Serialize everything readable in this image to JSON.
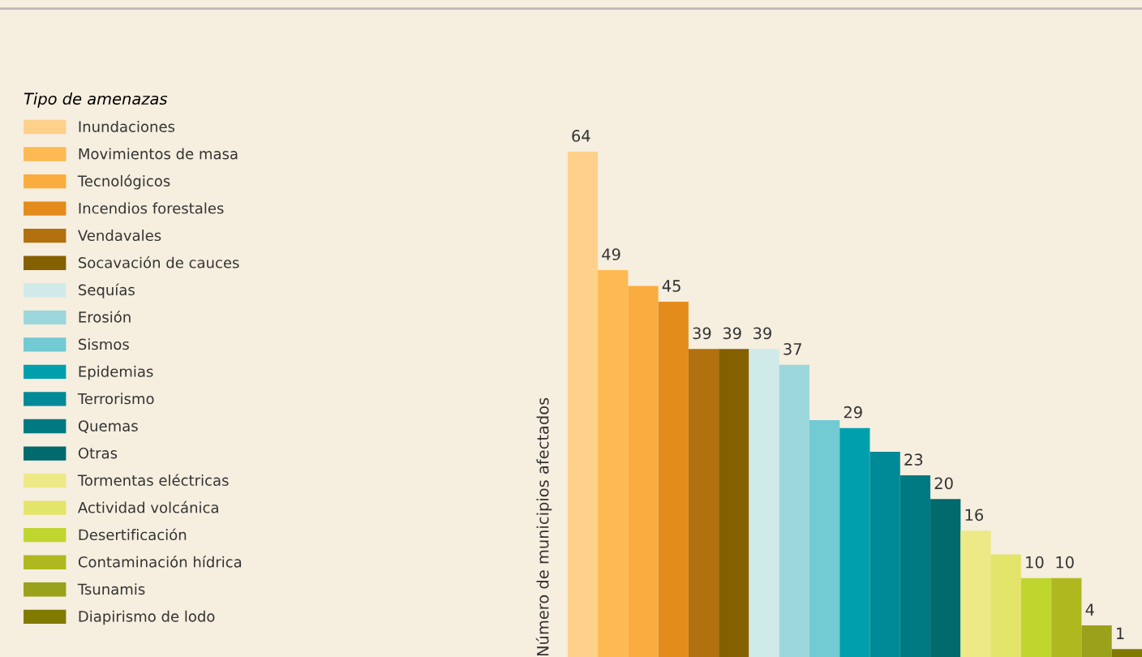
{
  "chart_data": {
    "type": "bar",
    "legend_title": "Tipo de amenazas",
    "ylabel": "Número de municipios afectados",
    "stacked": true,
    "legend": "left",
    "categories": [
      null,
      null,
      null,
      null,
      null,
      null,
      null,
      null,
      null,
      null,
      null,
      null,
      null,
      null,
      null,
      null,
      null,
      null,
      null
    ],
    "series": [
      {
        "name": "Inundaciones",
        "color": "#fed08a",
        "values": [
          64,
          null,
          null,
          null,
          null,
          null,
          null,
          null,
          null,
          null,
          null,
          null,
          null,
          null,
          null,
          null,
          null,
          null,
          null
        ],
        "value_labels": [
          "64",
          null,
          null,
          null,
          null,
          null,
          null,
          null,
          null,
          null,
          null,
          null,
          null,
          null,
          null,
          null,
          null,
          null,
          null
        ]
      },
      {
        "name": "Movimientos de masa",
        "color": "#fdb952",
        "values": [
          null,
          49,
          null,
          null,
          null,
          null,
          null,
          null,
          null,
          null,
          null,
          null,
          null,
          null,
          null,
          null,
          null,
          null,
          null
        ],
        "value_labels": [
          null,
          "49",
          null,
          null,
          null,
          null,
          null,
          null,
          null,
          null,
          null,
          null,
          null,
          null,
          null,
          null,
          null,
          null,
          null
        ]
      },
      {
        "name": "Tecnológicos",
        "color": "#fbac3e",
        "values": [
          null,
          null,
          47,
          null,
          null,
          null,
          null,
          null,
          null,
          null,
          null,
          null,
          null,
          null,
          null,
          null,
          null,
          null,
          null
        ],
        "value_labels": [
          null,
          null,
          null,
          null,
          null,
          null,
          null,
          null,
          null,
          null,
          null,
          null,
          null,
          null,
          null,
          null,
          null,
          null,
          null
        ]
      },
      {
        "name": "Incendios forestales",
        "color": "#e38c1b",
        "values": [
          null,
          null,
          null,
          45,
          null,
          null,
          null,
          null,
          null,
          null,
          null,
          null,
          null,
          null,
          null,
          null,
          null,
          null,
          null
        ],
        "value_labels": [
          null,
          null,
          null,
          "45",
          null,
          null,
          null,
          null,
          null,
          null,
          null,
          null,
          null,
          null,
          null,
          null,
          null,
          null,
          null
        ]
      },
      {
        "name": "Vendavales",
        "color": "#b2700e",
        "values": [
          null,
          null,
          null,
          null,
          39,
          null,
          null,
          null,
          null,
          null,
          null,
          null,
          null,
          null,
          null,
          null,
          null,
          null,
          null
        ],
        "value_labels": [
          null,
          null,
          null,
          null,
          "39",
          null,
          null,
          null,
          null,
          null,
          null,
          null,
          null,
          null,
          null,
          null,
          null,
          null,
          null
        ]
      },
      {
        "name": "Socavación de cauces",
        "color": "#856000",
        "values": [
          null,
          null,
          null,
          null,
          null,
          39,
          null,
          null,
          null,
          null,
          null,
          null,
          null,
          null,
          null,
          null,
          null,
          null,
          null
        ],
        "value_labels": [
          null,
          null,
          null,
          null,
          null,
          "39",
          null,
          null,
          null,
          null,
          null,
          null,
          null,
          null,
          null,
          null,
          null,
          null,
          null
        ]
      },
      {
        "name": "Sequías",
        "color": "#d0eaea",
        "values": [
          null,
          null,
          null,
          null,
          null,
          null,
          39,
          null,
          null,
          null,
          null,
          null,
          null,
          null,
          null,
          null,
          null,
          null,
          null
        ],
        "value_labels": [
          null,
          null,
          null,
          null,
          null,
          null,
          "39",
          null,
          null,
          null,
          null,
          null,
          null,
          null,
          null,
          null,
          null,
          null,
          null
        ]
      },
      {
        "name": "Erosión",
        "color": "#9cd7db",
        "values": [
          null,
          null,
          null,
          null,
          null,
          null,
          null,
          37,
          null,
          null,
          null,
          null,
          null,
          null,
          null,
          null,
          null,
          null,
          null
        ],
        "value_labels": [
          null,
          null,
          null,
          null,
          null,
          null,
          null,
          "37",
          null,
          null,
          null,
          null,
          null,
          null,
          null,
          null,
          null,
          null,
          null
        ]
      },
      {
        "name": "Sismos",
        "color": "#72cad3",
        "values": [
          null,
          null,
          null,
          null,
          null,
          null,
          null,
          null,
          30,
          null,
          null,
          null,
          null,
          null,
          null,
          null,
          null,
          null,
          null
        ],
        "value_labels": [
          null,
          null,
          null,
          null,
          null,
          null,
          null,
          null,
          null,
          null,
          null,
          null,
          null,
          null,
          null,
          null,
          null,
          null,
          null
        ]
      },
      {
        "name": "Epidemias",
        "color": "#009fad",
        "values": [
          null,
          null,
          null,
          null,
          null,
          null,
          null,
          null,
          null,
          29,
          null,
          null,
          null,
          null,
          null,
          null,
          null,
          null,
          null
        ],
        "value_labels": [
          null,
          null,
          null,
          null,
          null,
          null,
          null,
          null,
          null,
          "29",
          null,
          null,
          null,
          null,
          null,
          null,
          null,
          null,
          null
        ]
      },
      {
        "name": "Terrorismo",
        "color": "#008996",
        "values": [
          null,
          null,
          null,
          null,
          null,
          null,
          null,
          null,
          null,
          null,
          26,
          null,
          null,
          null,
          null,
          null,
          null,
          null,
          null
        ],
        "value_labels": [
          null,
          null,
          null,
          null,
          null,
          null,
          null,
          null,
          null,
          null,
          null,
          null,
          null,
          null,
          null,
          null,
          null,
          null,
          null
        ]
      },
      {
        "name": "Quemas",
        "color": "#007a82",
        "values": [
          null,
          null,
          null,
          null,
          null,
          null,
          null,
          null,
          null,
          null,
          null,
          23,
          null,
          null,
          null,
          null,
          null,
          null,
          null
        ],
        "value_labels": [
          null,
          null,
          null,
          null,
          null,
          null,
          null,
          null,
          null,
          null,
          null,
          "23",
          null,
          null,
          null,
          null,
          null,
          null,
          null
        ]
      },
      {
        "name": "Otras",
        "color": "#006a6c",
        "values": [
          null,
          null,
          null,
          null,
          null,
          null,
          null,
          null,
          null,
          null,
          null,
          null,
          20,
          null,
          null,
          null,
          null,
          null,
          null
        ],
        "value_labels": [
          null,
          null,
          null,
          null,
          null,
          null,
          null,
          null,
          null,
          null,
          null,
          null,
          "20",
          null,
          null,
          null,
          null,
          null,
          null
        ]
      },
      {
        "name": "Tormentas eléctricas",
        "color": "#ece986",
        "values": [
          null,
          null,
          null,
          null,
          null,
          null,
          null,
          null,
          null,
          null,
          null,
          null,
          null,
          16,
          null,
          null,
          null,
          null,
          null
        ],
        "value_labels": [
          null,
          null,
          null,
          null,
          null,
          null,
          null,
          null,
          null,
          null,
          null,
          null,
          null,
          "16",
          null,
          null,
          null,
          null,
          null
        ]
      },
      {
        "name": "Actividad volcánica",
        "color": "#e3e46a",
        "values": [
          null,
          null,
          null,
          null,
          null,
          null,
          null,
          null,
          null,
          null,
          null,
          null,
          null,
          null,
          13,
          null,
          null,
          null,
          null
        ],
        "value_labels": [
          null,
          null,
          null,
          null,
          null,
          null,
          null,
          null,
          null,
          null,
          null,
          null,
          null,
          null,
          null,
          null,
          null,
          null,
          null
        ]
      },
      {
        "name": "Desertificación",
        "color": "#bfd62e",
        "values": [
          null,
          null,
          null,
          null,
          null,
          null,
          null,
          null,
          null,
          null,
          null,
          null,
          null,
          null,
          null,
          10,
          null,
          null,
          null
        ],
        "value_labels": [
          null,
          null,
          null,
          null,
          null,
          null,
          null,
          null,
          null,
          null,
          null,
          null,
          null,
          null,
          null,
          "10",
          null,
          null,
          null
        ]
      },
      {
        "name": "Contaminación hídrica",
        "color": "#afb81f",
        "values": [
          null,
          null,
          null,
          null,
          null,
          null,
          null,
          null,
          null,
          null,
          null,
          null,
          null,
          null,
          null,
          null,
          10,
          null,
          null
        ],
        "value_labels": [
          null,
          null,
          null,
          null,
          null,
          null,
          null,
          null,
          null,
          null,
          null,
          null,
          null,
          null,
          null,
          null,
          "10",
          null,
          null
        ]
      },
      {
        "name": "Tsunamis",
        "color": "#9aa11a",
        "values": [
          null,
          null,
          null,
          null,
          null,
          null,
          null,
          null,
          null,
          null,
          null,
          null,
          null,
          null,
          null,
          null,
          null,
          4,
          null
        ],
        "value_labels": [
          null,
          null,
          null,
          null,
          null,
          null,
          null,
          null,
          null,
          null,
          null,
          null,
          null,
          null,
          null,
          null,
          null,
          "4",
          null
        ]
      },
      {
        "name": "Diapirismo de lodo",
        "color": "#817a00",
        "values": [
          null,
          null,
          null,
          null,
          null,
          null,
          null,
          null,
          null,
          null,
          null,
          null,
          null,
          null,
          null,
          null,
          null,
          null,
          1
        ],
        "value_labels": [
          null,
          null,
          null,
          null,
          null,
          null,
          null,
          null,
          null,
          null,
          null,
          null,
          null,
          null,
          null,
          null,
          null,
          null,
          "1"
        ]
      }
    ]
  }
}
